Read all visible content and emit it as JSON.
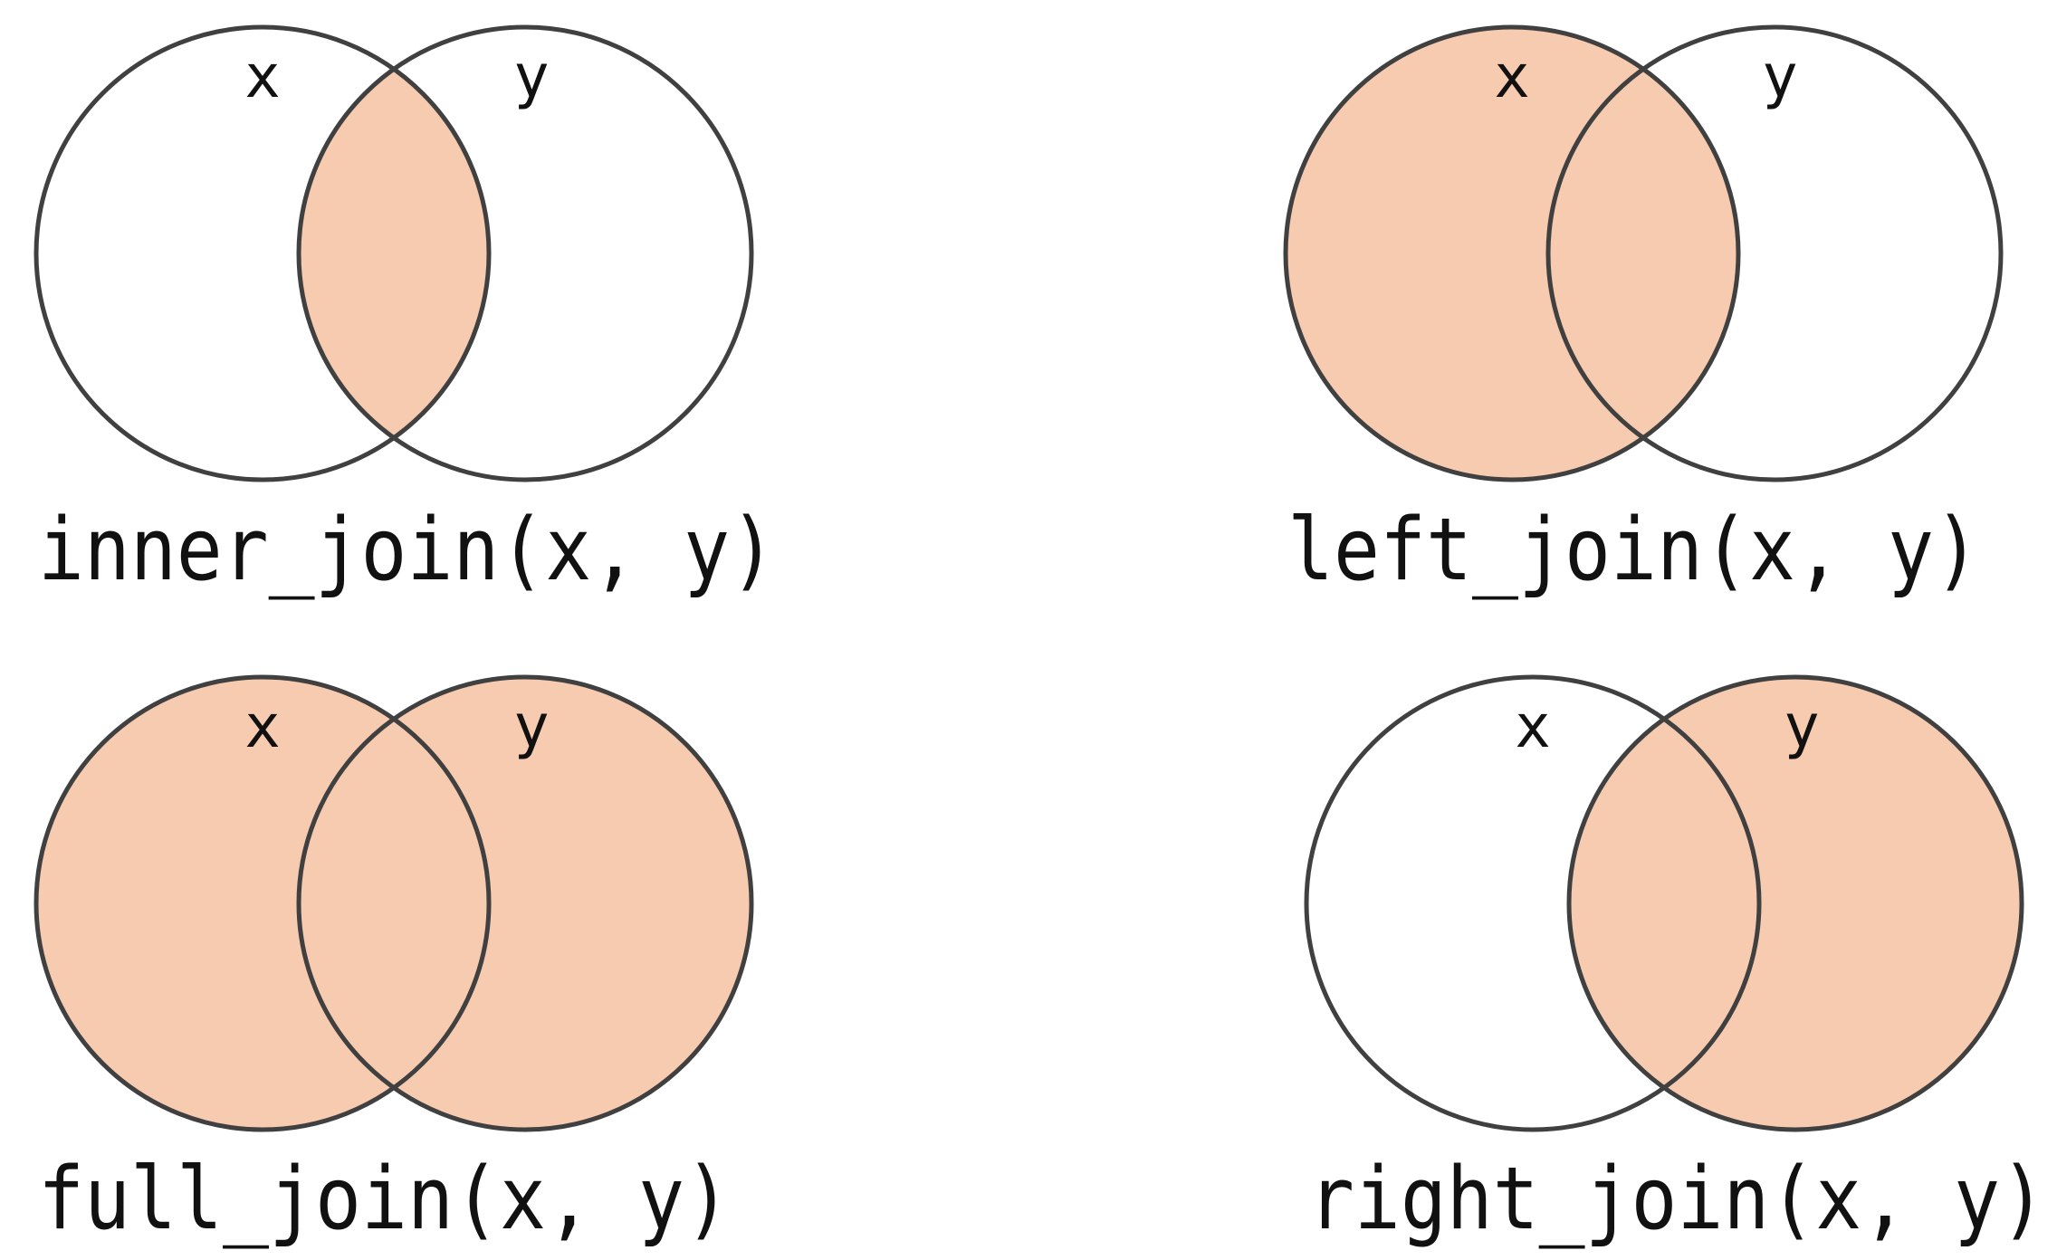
{
  "colors": {
    "highlight": "#f6cbb0",
    "outline": "#404040",
    "background": "#ffffff",
    "text": "#111111"
  },
  "diagrams": [
    {
      "id": "inner",
      "caption": "inner_join(x, y)",
      "left_label": "x",
      "right_label": "y",
      "shaded": "intersection"
    },
    {
      "id": "left",
      "caption": "left_join(x, y)",
      "left_label": "x",
      "right_label": "y",
      "shaded": "left"
    },
    {
      "id": "full",
      "caption": "full_join(x, y)",
      "left_label": "x",
      "right_label": "y",
      "shaded": "both"
    },
    {
      "id": "right",
      "caption": "right_join(x, y)",
      "left_label": "x",
      "right_label": "y",
      "shaded": "right"
    }
  ]
}
